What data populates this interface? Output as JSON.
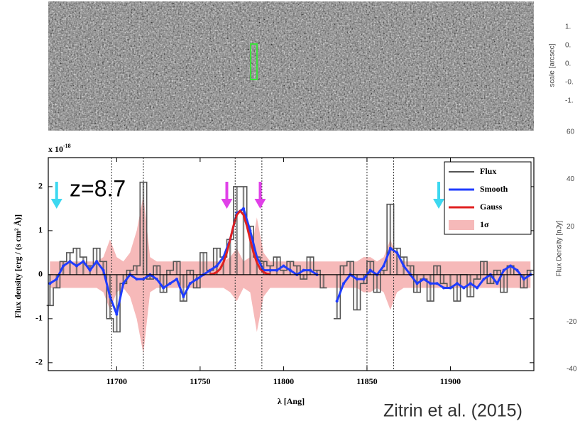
{
  "chart_data": {
    "type": "spectrum",
    "xlabel": "λ [Ang]",
    "ylabel": "Flux density  [erg / (s cm² Å)]",
    "y_scale_label": "x 10",
    "y_scale_exponent": "-18",
    "y2label": "Flux Density [nJy]",
    "annotation": "z=8.7",
    "credit": "Zitrin et al. (2015)",
    "image_panel": {
      "axis_label": "scale [arcsec]",
      "tick_labels": [
        "1.",
        "0.",
        "0.",
        "-0.",
        "-1."
      ]
    },
    "xlim": [
      11659,
      11950
    ],
    "ylim": [
      -2.18,
      2.66
    ],
    "xticks": [
      11700,
      11750,
      11800,
      11850,
      11900
    ],
    "yticks": [
      -2,
      -1,
      0,
      1,
      2
    ],
    "y2lim": [
      -40.6,
      60.2
    ],
    "y2ticks": [
      -40,
      -20,
      20,
      40,
      60
    ],
    "vlines": [
      11697,
      11716,
      11771,
      11787,
      11850,
      11866
    ],
    "arrows": [
      {
        "x": 11664,
        "color": "#3cd8f0"
      },
      {
        "x": 11766,
        "color": "#e040e8"
      },
      {
        "x": 11786,
        "color": "#e040e8"
      },
      {
        "x": 11893,
        "color": "#3cd8f0"
      }
    ],
    "x": [
      11660,
      11664,
      11668,
      11672,
      11676,
      11680,
      11684,
      11688,
      11692,
      11696,
      11700,
      11704,
      11708,
      11712,
      11716,
      11720,
      11724,
      11728,
      11732,
      11736,
      11740,
      11744,
      11748,
      11752,
      11756,
      11760,
      11764,
      11768,
      11772,
      11776,
      11780,
      11784,
      11788,
      11792,
      11796,
      11800,
      11804,
      11808,
      11812,
      11816,
      11820,
      11824,
      11828,
      11832,
      11836,
      11840,
      11844,
      11848,
      11852,
      11856,
      11860,
      11864,
      11868,
      11872,
      11876,
      11880,
      11884,
      11888,
      11892,
      11896,
      11900,
      11904,
      11908,
      11912,
      11916,
      11920,
      11924,
      11928,
      11932,
      11936,
      11940,
      11944,
      11948
    ],
    "series": [
      {
        "name": "Flux",
        "style": "step",
        "color": "#555555",
        "values": [
          -0.7,
          -0.3,
          0.3,
          0.5,
          0.6,
          0.4,
          0.2,
          0.6,
          0.3,
          -1.0,
          -1.3,
          -0.2,
          0.1,
          0.2,
          2.1,
          -0.1,
          0.2,
          -0.4,
          0.1,
          0.3,
          -0.6,
          0.1,
          -0.3,
          0.5,
          0.1,
          0.6,
          0.4,
          0.8,
          2.0,
          2.0,
          1.1,
          0.4,
          0.3,
          0.2,
          0.4,
          0.1,
          0.3,
          0.2,
          -0.1,
          0.4,
          0.1,
          -0.3,
          null,
          -1.0,
          0.2,
          0.3,
          -0.8,
          -0.2,
          0.3,
          -0.4,
          0.1,
          1.6,
          0.6,
          0.4,
          0.2,
          -0.4,
          -0.1,
          -0.6,
          0.2,
          -0.2,
          -0.3,
          -0.6,
          0.0,
          -0.5,
          -0.1,
          0.3,
          -0.2,
          0.1,
          -0.4,
          0.2,
          0.0,
          -0.3,
          0.1
        ]
      },
      {
        "name": "Smooth",
        "style": "line",
        "color": "#1f3cff",
        "values": [
          -0.2,
          -0.1,
          0.2,
          0.3,
          0.2,
          0.3,
          0.1,
          0.3,
          0.1,
          -0.5,
          -0.9,
          -0.2,
          0.0,
          -0.1,
          -0.1,
          0.0,
          -0.1,
          -0.3,
          -0.2,
          -0.1,
          -0.5,
          -0.2,
          -0.1,
          0.0,
          0.1,
          0.2,
          0.4,
          0.8,
          1.4,
          1.5,
          1.0,
          0.4,
          0.1,
          0.1,
          0.1,
          0.2,
          0.1,
          0.0,
          0.1,
          0.1,
          0.0,
          null,
          null,
          -0.6,
          -0.2,
          0.0,
          -0.1,
          -0.1,
          0.1,
          0.0,
          0.2,
          0.6,
          0.5,
          0.2,
          0.0,
          -0.2,
          -0.1,
          -0.2,
          -0.2,
          -0.3,
          -0.3,
          -0.2,
          -0.3,
          -0.2,
          -0.3,
          -0.1,
          0.0,
          -0.2,
          0.1,
          0.2,
          0.1,
          -0.1,
          0.0
        ]
      },
      {
        "name": "Gauss",
        "style": "line",
        "color": "#e02020",
        "x": [
          11756,
          11758,
          11760,
          11762,
          11764,
          11766,
          11768,
          11770,
          11772,
          11774,
          11776,
          11778,
          11780,
          11782,
          11784,
          11786,
          11788,
          11790,
          11792
        ],
        "values": [
          0.01,
          0.02,
          0.06,
          0.13,
          0.28,
          0.5,
          0.8,
          1.11,
          1.36,
          1.45,
          1.36,
          1.11,
          0.8,
          0.5,
          0.28,
          0.13,
          0.06,
          0.02,
          0.01
        ]
      },
      {
        "name": "1σ",
        "style": "band",
        "color": "#f6b9b9",
        "values": [
          0.3,
          0.3,
          0.3,
          0.3,
          0.3,
          0.3,
          0.3,
          0.3,
          0.4,
          0.8,
          0.4,
          0.3,
          0.5,
          1.0,
          1.8,
          0.4,
          0.3,
          0.3,
          0.3,
          0.3,
          0.3,
          0.3,
          0.3,
          0.3,
          0.3,
          0.3,
          0.3,
          0.4,
          0.6,
          0.3,
          0.4,
          1.3,
          0.5,
          0.3,
          0.3,
          0.3,
          0.3,
          0.3,
          0.3,
          0.3,
          0.3,
          0.3,
          0.3,
          0.3,
          0.3,
          0.3,
          0.3,
          0.4,
          0.4,
          0.3,
          0.4,
          0.8,
          0.4,
          0.3,
          0.3,
          0.3,
          0.3,
          0.3,
          0.3,
          0.3,
          0.3,
          0.3,
          0.3,
          0.3,
          0.3,
          0.3,
          0.3,
          0.3,
          0.3,
          0.3,
          0.3,
          0.3,
          0.3
        ]
      }
    ]
  }
}
